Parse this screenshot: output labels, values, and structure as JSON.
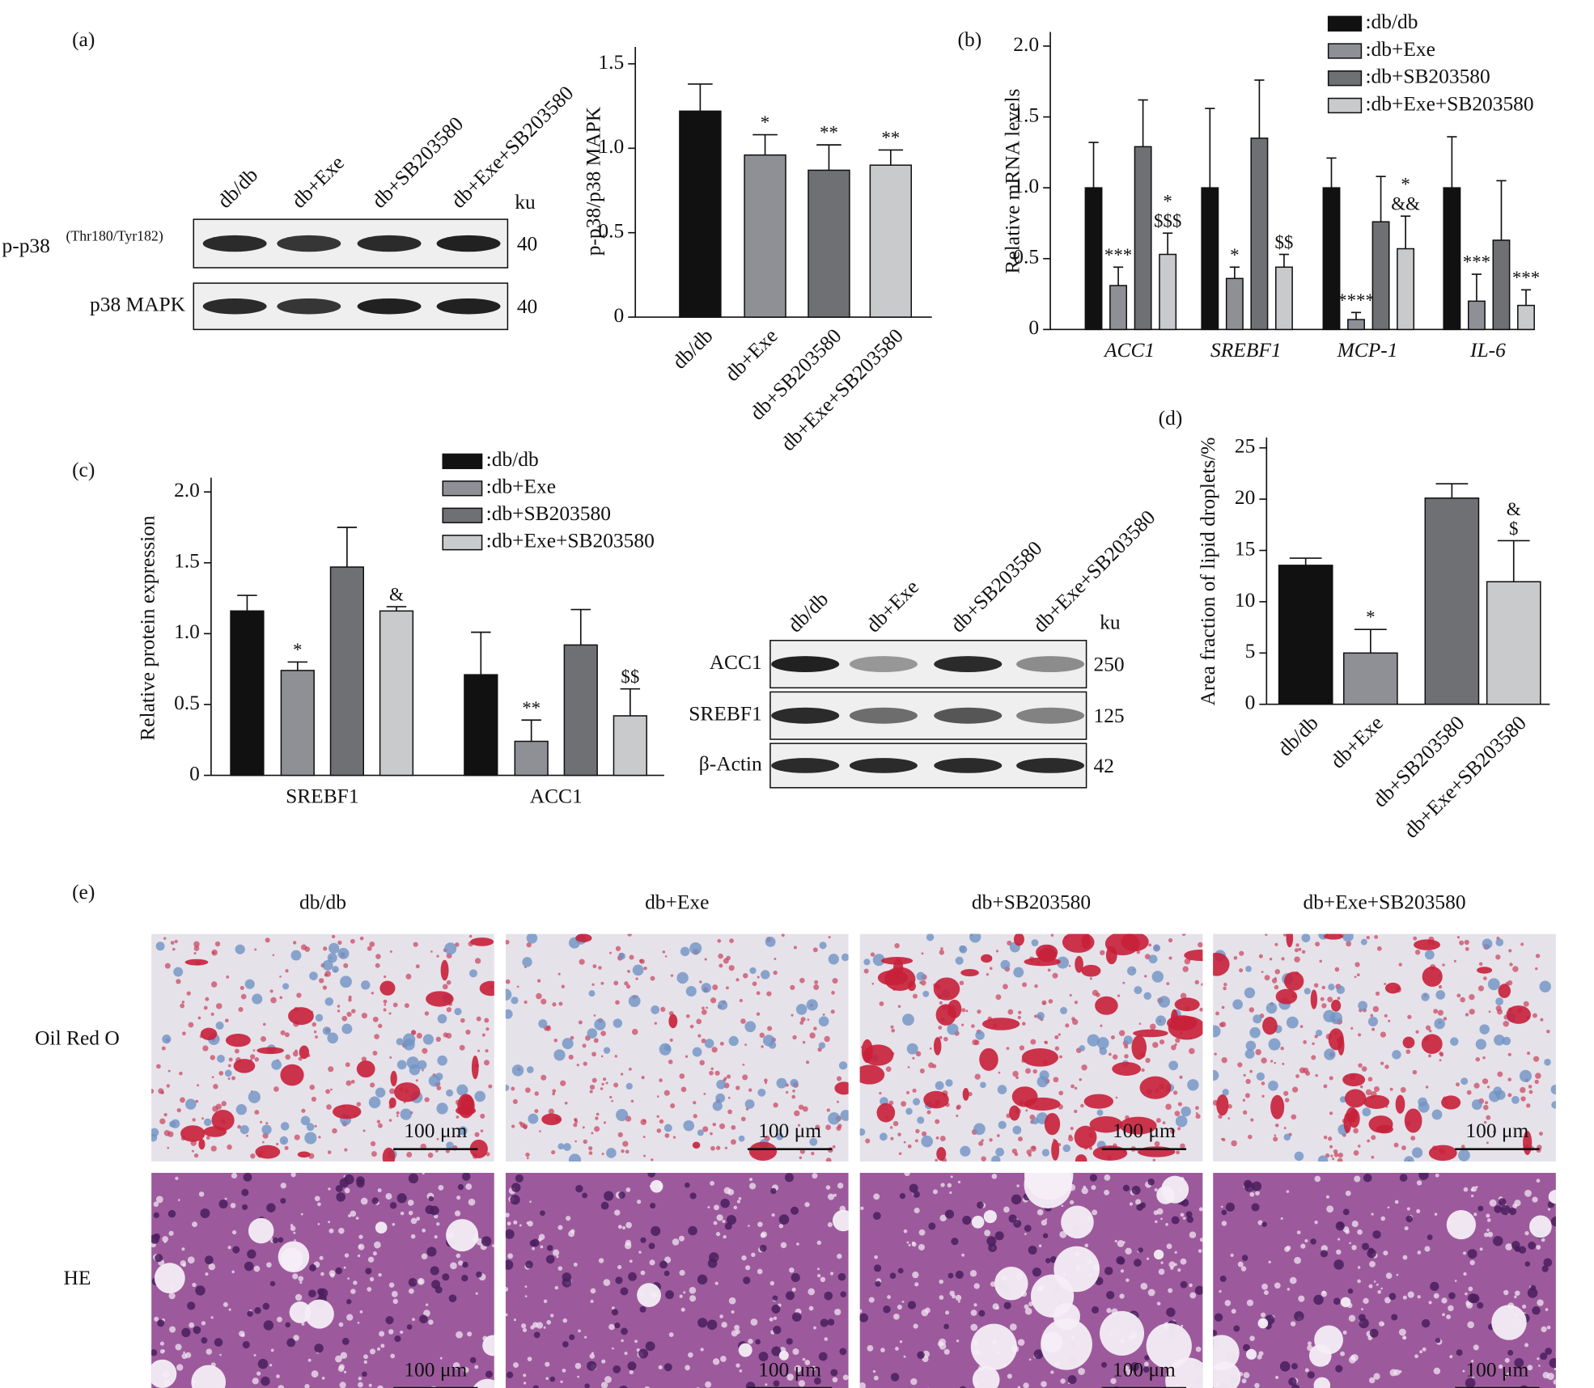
{
  "panel_labels": [
    "(a)",
    "(b)",
    "(c)",
    "(d)",
    "(e)"
  ],
  "chart_data": [
    {
      "type": "bar",
      "y_label": "p-p38/p38 MAPK",
      "categories": [
        "db/db",
        "db+Exe",
        "db+SB203580",
        "db+Exe+SB203580"
      ],
      "values": [
        1.22,
        0.96,
        0.87,
        0.9
      ],
      "errors": [
        0.16,
        0.12,
        0.15,
        0.09
      ],
      "annotations": [
        null,
        [
          "*"
        ],
        [
          "**"
        ],
        [
          "**"
        ]
      ],
      "colors": [
        "#111111",
        "#8e9096",
        "#6e7074",
        "#c9cacc"
      ],
      "ylim": [
        0,
        1.6
      ],
      "yticks": [
        0,
        0.5,
        {
          "value": 1,
          "label": "1.0"
        },
        1.5
      ]
    },
    {
      "type": "grouped_bar",
      "y_label": "Relative mRNA levels",
      "category_style": "italic",
      "legend": "upper right",
      "categories": [
        "ACC1",
        "SREBF1",
        "MCP-1",
        "IL-6"
      ],
      "series": [
        {
          "name": ":db/db",
          "color": "#111111",
          "values": [
            1,
            1,
            1,
            1
          ],
          "errors": [
            0.32,
            0.56,
            0.21,
            0.36
          ]
        },
        {
          "name": ":db+Exe",
          "color": "#8e9096",
          "values": [
            0.31,
            0.36,
            0.07,
            0.2
          ],
          "errors": [
            0.13,
            0.08,
            0.05,
            0.19
          ],
          "annotations": [
            [
              "***"
            ],
            [
              "*"
            ],
            [
              "****"
            ],
            [
              "***"
            ]
          ]
        },
        {
          "name": ":db+SB203580",
          "color": "#6e7074",
          "values": [
            1.29,
            1.35,
            0.76,
            0.63
          ],
          "errors": [
            0.33,
            0.41,
            0.32,
            0.42
          ]
        },
        {
          "name": ":db+Exe+SB203580",
          "color": "#c9cacc",
          "values": [
            0.53,
            0.44,
            0.57,
            0.17
          ],
          "errors": [
            0.15,
            0.09,
            0.23,
            0.11
          ],
          "annotations": [
            [
              "*",
              "$$$"
            ],
            [
              "$$"
            ],
            [
              "*",
              "&&"
            ],
            [
              "***"
            ]
          ]
        }
      ],
      "ylim": [
        0,
        2.1
      ],
      "yticks": [
        0,
        0.5,
        {
          "value": 1,
          "label": "1.0"
        },
        1.5,
        {
          "value": 2,
          "label": "2.0"
        }
      ]
    },
    {
      "type": "grouped_bar",
      "y_label": "Relative protein expression",
      "legend": "top",
      "categories": [
        "SREBF1",
        "ACC1"
      ],
      "series": [
        {
          "name": ":db/db",
          "color": "#111111",
          "values": [
            1.16,
            0.71
          ],
          "errors": [
            0.11,
            0.3
          ]
        },
        {
          "name": ":db+Exe",
          "color": "#8e9096",
          "values": [
            0.74,
            0.24
          ],
          "errors": [
            0.06,
            0.15
          ],
          "annotations": [
            [
              "*"
            ],
            [
              "**"
            ]
          ]
        },
        {
          "name": ":db+SB203580",
          "color": "#6e7074",
          "values": [
            1.47,
            0.92
          ],
          "errors": [
            0.28,
            0.25
          ]
        },
        {
          "name": ":db+Exe+SB203580",
          "color": "#c9cacc",
          "values": [
            1.16,
            0.42
          ],
          "errors": [
            0.03,
            0.19
          ],
          "annotations": [
            [
              "&"
            ],
            [
              "$$"
            ]
          ]
        }
      ],
      "ylim": [
        0,
        2.1
      ],
      "yticks": [
        0,
        0.5,
        {
          "value": 1,
          "label": "1.0"
        },
        1.5,
        {
          "value": 2,
          "label": "2.0"
        }
      ]
    },
    {
      "type": "bar",
      "y_label": "Area fraction of lipid droplets/%",
      "categories": [
        "db/db",
        "db+Exe",
        "db+SB203580",
        "db+Exe+SB203580"
      ],
      "values": [
        13.55,
        5,
        20.1,
        11.95
      ],
      "errors": [
        0.7,
        2.3,
        1.4,
        4
      ],
      "annotations": [
        null,
        [
          "*"
        ],
        null,
        [
          "&",
          "$"
        ]
      ],
      "colors": [
        "#111111",
        "#8e9096",
        "#6e7074",
        "#c9cacc"
      ],
      "ylim": [
        0,
        26
      ],
      "yticks": [
        0,
        5,
        10,
        15,
        20,
        25
      ]
    }
  ],
  "blots": [
    {
      "columns": [
        "db/db",
        "db+Exe",
        "db+SB203580",
        "db+Exe+SB203580"
      ],
      "unit": "ku",
      "rows": [
        {
          "label": "p-p38",
          "label_sup": "(Thr180/Tyr182)",
          "size": 40
        },
        {
          "label": "p38 MAPK",
          "size": 40
        }
      ]
    },
    {
      "columns": [
        "db/db",
        "db+Exe",
        "db+SB203580",
        "db+Exe+SB203580"
      ],
      "unit": "ku",
      "rows": [
        {
          "label": "ACC1",
          "size": 250
        },
        {
          "label": "SREBF1",
          "size": 125
        },
        {
          "label": "β-Actin",
          "size": 42
        }
      ]
    }
  ],
  "histology": {
    "columns": [
      "db/db",
      "db+Exe",
      "db+SB203580",
      "db+Exe+SB203580"
    ],
    "rows": [
      "Oil Red O",
      "HE"
    ],
    "scale_bar": "100 μm"
  }
}
